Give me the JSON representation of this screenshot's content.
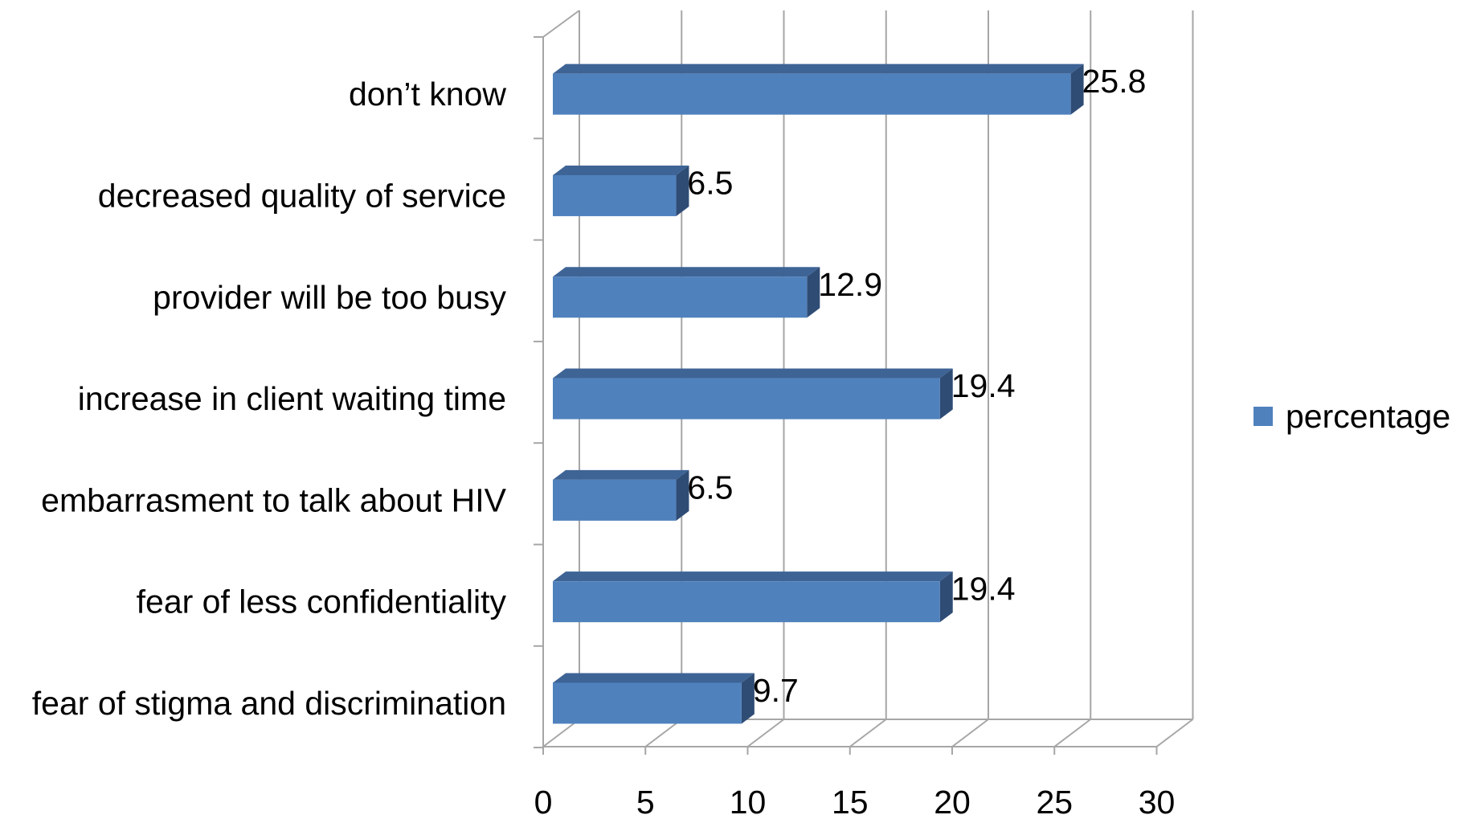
{
  "chart_data": {
    "type": "bar",
    "orientation": "horizontal",
    "style": "3d",
    "categories": [
      "don’t know",
      "decreased quality of service",
      "provider will be too busy",
      "increase in client waiting time",
      "embarrasment to talk about HIV",
      "fear of less confidentiality",
      "fear of stigma and discrimination"
    ],
    "series": [
      {
        "name": "percentage",
        "values": [
          25.8,
          6.5,
          12.9,
          19.4,
          6.5,
          19.4,
          9.7
        ],
        "color": "#4F81BD"
      }
    ],
    "data_labels": [
      "25.8",
      "6.5",
      "12.9",
      "19.4",
      "6.5",
      "19.4",
      "9.7"
    ],
    "xlim": [
      0,
      30
    ],
    "x_ticks": [
      0,
      5,
      10,
      15,
      20,
      25,
      30
    ],
    "x_tick_labels": [
      "0",
      "5",
      "10",
      "15",
      "20",
      "25",
      "30"
    ],
    "grid": true,
    "legend_position": "right",
    "title": "",
    "xlabel": "",
    "ylabel": ""
  },
  "colors": {
    "bar_front": "#4F81BD",
    "bar_top": "#3E6496",
    "bar_side": "#2F4C75",
    "gridline": "#A6A6A6",
    "axis": "#A6A6A6"
  }
}
